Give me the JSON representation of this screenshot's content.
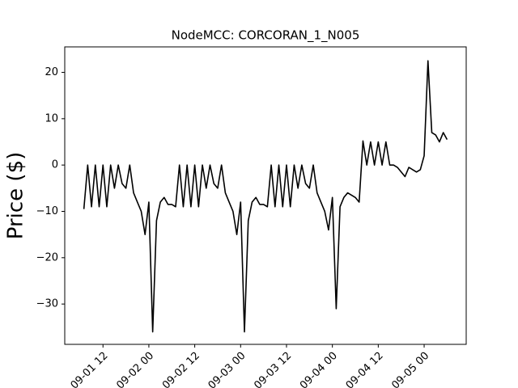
{
  "chart_data": {
    "type": "line",
    "title": "NodeMCC: CORCORAN_1_N005",
    "y_label": "Price ($)",
    "color": "#000000",
    "x": [
      "09-01 07",
      "09-01 08",
      "09-01 09",
      "09-01 10",
      "09-01 11",
      "09-01 12",
      "09-01 13",
      "09-01 14",
      "09-01 15",
      "09-01 16",
      "09-01 17",
      "09-01 18",
      "09-01 19",
      "09-01 20",
      "09-01 21",
      "09-01 22",
      "09-01 23",
      "09-02 00",
      "09-02 01",
      "09-02 02",
      "09-02 03",
      "09-02 04",
      "09-02 05",
      "09-02 06",
      "09-02 07",
      "09-02 08",
      "09-02 09",
      "09-02 10",
      "09-02 11",
      "09-02 12",
      "09-02 13",
      "09-02 14",
      "09-02 15",
      "09-02 16",
      "09-02 17",
      "09-02 18",
      "09-02 19",
      "09-02 20",
      "09-02 21",
      "09-02 22",
      "09-02 23",
      "09-03 00",
      "09-03 01",
      "09-03 02",
      "09-03 03",
      "09-03 04",
      "09-03 05",
      "09-03 06",
      "09-03 07",
      "09-03 08",
      "09-03 09",
      "09-03 10",
      "09-03 11",
      "09-03 12",
      "09-03 13",
      "09-03 14",
      "09-03 15",
      "09-03 16",
      "09-03 17",
      "09-03 18",
      "09-03 19",
      "09-03 20",
      "09-03 21",
      "09-03 22",
      "09-03 23",
      "09-04 00",
      "09-04 01",
      "09-04 02",
      "09-04 03",
      "09-04 04",
      "09-04 05",
      "09-04 06",
      "09-04 07",
      "09-04 08",
      "09-04 09",
      "09-04 10",
      "09-04 11",
      "09-04 12",
      "09-04 13",
      "09-04 14",
      "09-04 15",
      "09-04 16",
      "09-04 17",
      "09-04 18",
      "09-04 19",
      "09-04 20",
      "09-04 21",
      "09-04 22",
      "09-04 23",
      "09-05 00",
      "09-05 01",
      "09-05 02",
      "09-05 03",
      "09-05 04",
      "09-05 05",
      "09-05 06"
    ],
    "values": [
      -9.5,
      0,
      -9,
      0,
      -9,
      0,
      -9,
      0,
      -5,
      0,
      -4,
      -5,
      0,
      -6,
      -8,
      -10,
      -15,
      -8,
      -36,
      -12,
      -8,
      -7,
      -8.5,
      -8.5,
      -9,
      0,
      -9,
      0,
      -9,
      0,
      -9,
      0,
      -5,
      0,
      -4,
      -5,
      0,
      -6,
      -8,
      -10,
      -15,
      -8,
      -36,
      -12,
      -8,
      -7,
      -8.5,
      -8.5,
      -9,
      0,
      -9,
      0,
      -9,
      0,
      -9,
      0,
      -5,
      0,
      -4,
      -5,
      0,
      -6,
      -8,
      -10,
      -14,
      -7,
      -31,
      -9,
      -7,
      -6,
      -6.5,
      -7,
      -8,
      5.2,
      0,
      5,
      0,
      5,
      0,
      5,
      0,
      0,
      -0.5,
      -1.5,
      -2.5,
      -0.5,
      -1,
      -1.5,
      -1,
      2,
      22.5,
      7,
      6.5,
      5,
      7,
      5.5
    ],
    "xlim": [
      "09-01 02",
      "09-05 11"
    ],
    "xticks": [
      "09-01 12",
      "09-02 00",
      "09-02 12",
      "09-03 00",
      "09-03 12",
      "09-04 00",
      "09-04 12",
      "09-05 00"
    ],
    "ylim": [
      -38.7,
      25.5
    ],
    "yticks": [
      {
        "value": -30,
        "label": "−30"
      },
      {
        "value": -20,
        "label": "−20"
      },
      {
        "value": -10,
        "label": "−10"
      },
      0,
      10,
      20
    ]
  }
}
